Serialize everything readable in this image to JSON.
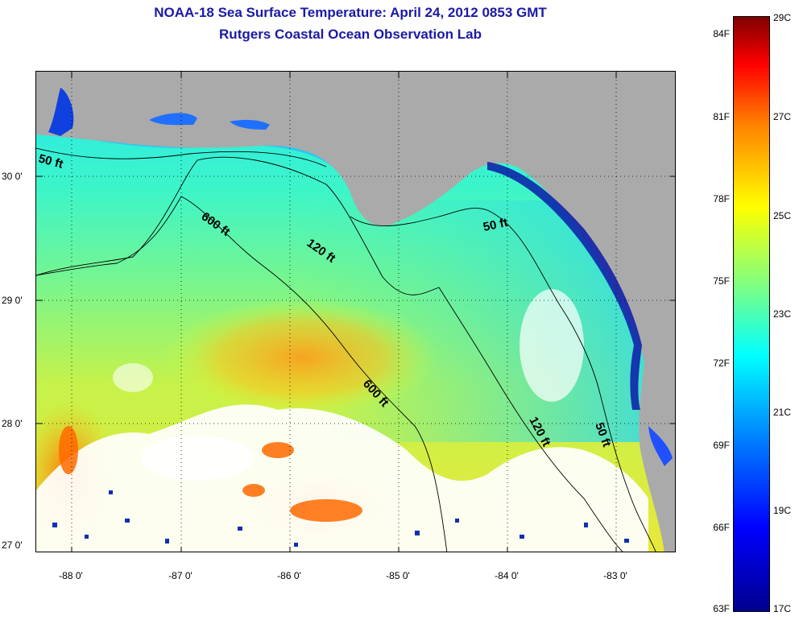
{
  "title": {
    "line1": "NOAA-18 Sea Surface Temperature:  April 24, 2012 0853 GMT",
    "line2": "Rutgers Coastal Ocean Observation Lab"
  },
  "axes": {
    "latitude_labels": [
      "30 0'",
      "29 0'",
      "28 0'",
      "27 0'"
    ],
    "latitude_values": [
      30,
      29,
      28,
      27
    ],
    "longitude_labels": [
      "-88 0'",
      "-87 0'",
      "-86 0'",
      "-85 0'",
      "-84 0'",
      "-83 0'"
    ],
    "longitude_values": [
      -88,
      -87,
      -86,
      -85,
      -84,
      -83
    ],
    "lat_range": [
      26.95,
      30.85
    ],
    "lon_range": [
      -88.3,
      -82.4
    ]
  },
  "contours": {
    "labels": [
      "50 ft",
      "600 ft",
      "120 ft",
      "50 ft",
      "600 ft",
      "120 ft",
      "50 ft"
    ]
  },
  "colorbar": {
    "fahrenheit_labels": [
      "84F",
      "81F",
      "78F",
      "75F",
      "72F",
      "69F",
      "66F",
      "63F"
    ],
    "fahrenheit_values": [
      84,
      81,
      78,
      75,
      72,
      69,
      66,
      63
    ],
    "celsius_labels": [
      "29C",
      "27C",
      "25C",
      "23C",
      "21C",
      "19C",
      "17C"
    ],
    "celsius_values": [
      29,
      27,
      25,
      23,
      21,
      19,
      17
    ],
    "range_c": [
      17,
      29
    ]
  },
  "colors": {
    "land": "#aaaaaa",
    "cloud_mask": "#ffffff",
    "title": "#1a1aa6"
  }
}
